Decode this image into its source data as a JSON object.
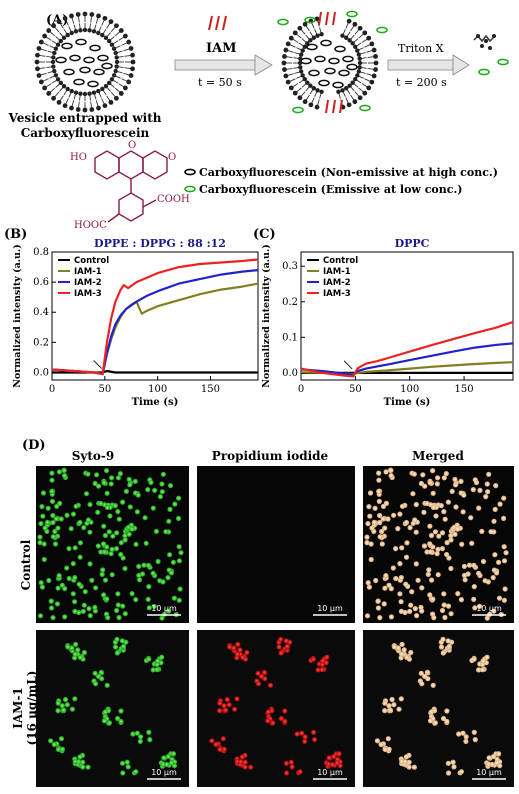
{
  "panel_a": {
    "label": "(A)",
    "arrow1_label": "IAM",
    "arrow1_time": "t = 50 s",
    "arrow2_label": "Triton X",
    "arrow2_time": "t = 200 s",
    "vesicle_caption_1": "Vesicle entrapped with",
    "vesicle_caption_2": "Carboxyfluorescein",
    "molecule_ho": "HO",
    "molecule_o": "O",
    "molecule_o2": "O",
    "molecule_cooh1": "COOH",
    "molecule_cooh2": "HOOC",
    "legend_nonemissive": "Carboxyfluorescein (Non-emissive at high conc.)",
    "legend_emissive": "Carboxyfluorescein (Emissive at low conc.)",
    "colors": {
      "nonemissive": "#000000",
      "emissive": "#22aa22",
      "iam": "#cc2222",
      "molecule": "#8b1a4a"
    }
  },
  "chart_data": [
    {
      "type": "line",
      "panel_label": "(B)",
      "title": "DPPE : DPPG : 88 :12",
      "xlabel": "Time (s)",
      "ylabel": "Normalized intensity (a.u.)",
      "xlim": [
        0,
        195
      ],
      "ylim": [
        -0.05,
        0.8
      ],
      "xticks": [
        0,
        50,
        100,
        150
      ],
      "yticks": [
        0.0,
        0.2,
        0.4,
        0.6,
        0.8
      ],
      "ytick_labels": [
        "0.0",
        "0.2",
        "0.4",
        "0.6",
        "0.8"
      ],
      "legend_position": "top-left",
      "series": [
        {
          "name": "Control",
          "color": "#000000",
          "x": [
            0,
            10,
            20,
            30,
            40,
            48,
            52,
            60,
            80,
            100,
            120,
            140,
            160,
            180,
            195
          ],
          "y": [
            0.0,
            0.0,
            0.0,
            0.0,
            0.0,
            0.0,
            0.01,
            0.0,
            0.0,
            0.0,
            0.0,
            0.0,
            0.0,
            0.0,
            0.0
          ]
        },
        {
          "name": "IAM-1",
          "color": "#808020",
          "x": [
            0,
            20,
            40,
            48,
            52,
            56,
            60,
            65,
            70,
            75,
            80,
            85,
            90,
            100,
            120,
            140,
            160,
            180,
            195
          ],
          "y": [
            0.02,
            0.01,
            0.0,
            -0.01,
            0.12,
            0.22,
            0.3,
            0.37,
            0.42,
            0.45,
            0.47,
            0.39,
            0.41,
            0.44,
            0.48,
            0.52,
            0.55,
            0.57,
            0.59
          ]
        },
        {
          "name": "IAM-2",
          "color": "#2222cc",
          "x": [
            0,
            20,
            40,
            48,
            52,
            56,
            60,
            65,
            70,
            80,
            90,
            100,
            120,
            140,
            160,
            180,
            195
          ],
          "y": [
            0.02,
            0.01,
            0.0,
            -0.01,
            0.13,
            0.24,
            0.32,
            0.38,
            0.42,
            0.47,
            0.51,
            0.54,
            0.59,
            0.62,
            0.65,
            0.67,
            0.68
          ]
        },
        {
          "name": "IAM-3",
          "color": "#ee2222",
          "x": [
            0,
            20,
            40,
            48,
            52,
            56,
            60,
            65,
            68,
            72,
            80,
            90,
            100,
            120,
            140,
            160,
            180,
            195
          ],
          "y": [
            0.02,
            0.01,
            0.0,
            -0.01,
            0.2,
            0.36,
            0.47,
            0.55,
            0.58,
            0.56,
            0.6,
            0.63,
            0.66,
            0.7,
            0.72,
            0.73,
            0.74,
            0.75
          ]
        }
      ]
    },
    {
      "type": "line",
      "panel_label": "(C)",
      "title": "DPPC",
      "xlabel": "Time (s)",
      "ylabel": "Normalized intensity (a.u.)",
      "xlim": [
        0,
        195
      ],
      "ylim": [
        -0.02,
        0.34
      ],
      "xticks": [
        0,
        50,
        100,
        150
      ],
      "yticks": [
        0.0,
        0.1,
        0.2,
        0.3
      ],
      "ytick_labels": [
        "0.0",
        "0.1",
        "0.2",
        "0.3"
      ],
      "legend_position": "top-left",
      "series": [
        {
          "name": "Control",
          "color": "#000000",
          "x": [
            0,
            20,
            40,
            50,
            60,
            80,
            100,
            120,
            140,
            160,
            180,
            195
          ],
          "y": [
            0.0,
            0.0,
            0.0,
            0.0,
            0.0,
            0.0,
            0.0,
            0.0,
            0.0,
            0.0,
            0.0,
            0.0
          ]
        },
        {
          "name": "IAM-1",
          "color": "#808020",
          "x": [
            0,
            20,
            40,
            48,
            52,
            60,
            80,
            100,
            120,
            140,
            160,
            180,
            195
          ],
          "y": [
            0.002,
            0.0,
            -0.002,
            -0.003,
            0.0,
            0.003,
            0.007,
            0.012,
            0.017,
            0.021,
            0.025,
            0.028,
            0.03
          ]
        },
        {
          "name": "IAM-2",
          "color": "#2222cc",
          "x": [
            0,
            20,
            40,
            48,
            52,
            60,
            80,
            100,
            120,
            140,
            160,
            180,
            195
          ],
          "y": [
            0.01,
            0.005,
            -0.002,
            -0.006,
            0.005,
            0.012,
            0.024,
            0.036,
            0.048,
            0.06,
            0.071,
            0.079,
            0.083
          ]
        },
        {
          "name": "IAM-3",
          "color": "#ee2222",
          "x": [
            0,
            10,
            20,
            30,
            40,
            48,
            52,
            56,
            60,
            70,
            80,
            100,
            120,
            140,
            160,
            180,
            195
          ],
          "y": [
            0.012,
            0.006,
            0.0,
            -0.004,
            -0.008,
            -0.01,
            0.012,
            0.02,
            0.026,
            0.033,
            0.042,
            0.06,
            0.078,
            0.095,
            0.112,
            0.128,
            0.143
          ]
        }
      ]
    }
  ],
  "panel_d": {
    "label": "(D)",
    "col_headers": [
      "Syto-9",
      "Propidium iodide",
      "Merged"
    ],
    "row_labels": [
      "Control",
      "IAM-1",
      "(16 µg/mL)"
    ],
    "scale_bar_label": "10 µm"
  }
}
